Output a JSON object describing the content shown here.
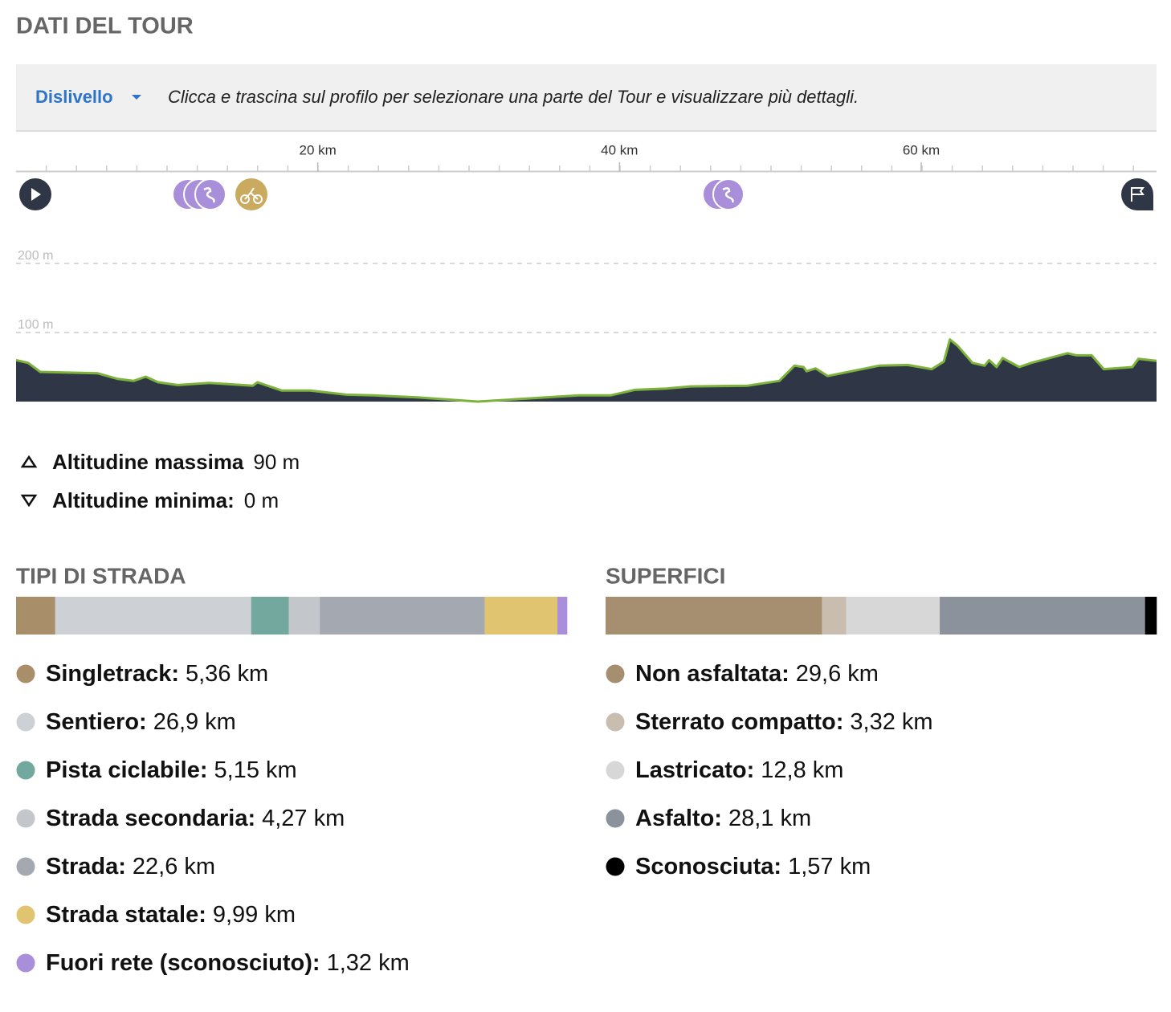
{
  "header": {
    "title": "DATI DEL TOUR"
  },
  "toolbar": {
    "dropdown": "Dislivello",
    "hint": "Clicca e trascina sul profilo per selezionare una parte del Tour e visualizzare più dettagli."
  },
  "elevation": {
    "type": "area",
    "color": "#2f3747",
    "line_color": "#7db33c",
    "x": [
      0,
      0.8,
      1.6,
      5.4,
      6.7,
      7.8,
      8.6,
      9.4,
      10.7,
      12.8,
      15.7,
      16,
      17.6,
      19.5,
      21.9,
      23.7,
      26.6,
      30.6,
      37.3,
      39.4,
      41,
      43.1,
      44.7,
      48.5,
      50.6,
      51.6,
      52.2,
      52.4,
      53,
      53.8,
      57.2,
      59.1,
      60.7,
      61.5,
      61.9,
      62.4,
      63.4,
      64.2,
      64.5,
      65,
      65.4,
      66.5,
      67.3,
      69.7,
      70.3,
      71.3,
      72.1,
      74,
      74.4,
      75.6
    ],
    "values": [
      60,
      56,
      43,
      41,
      33,
      30,
      36,
      28,
      24,
      27,
      23,
      28,
      16,
      16,
      10,
      9,
      6,
      0,
      9,
      9,
      17,
      19,
      22,
      23,
      30,
      52,
      50,
      44,
      48,
      37,
      52,
      53,
      47,
      58,
      90,
      81,
      56,
      52,
      60,
      50,
      63,
      50,
      56,
      70,
      67,
      67,
      47,
      50,
      62,
      59
    ],
    "xlim": [
      0,
      75.6
    ],
    "xticks": [
      {
        "value": 20,
        "label": "20 km"
      },
      {
        "value": 40,
        "label": "40 km"
      },
      {
        "value": 60,
        "label": "60 km"
      }
    ],
    "ylim": [
      0,
      250
    ],
    "yticks": [
      {
        "value": 100,
        "label": "100 m"
      },
      {
        "value": 200,
        "label": "200 m"
      }
    ],
    "grid": true
  },
  "stats": [
    {
      "label": "Altitudine massima",
      "value": "90 m"
    },
    {
      "label": "Altitudine minima:",
      "value": "0 m"
    }
  ],
  "road_types": {
    "type": "stacked_bar",
    "title": "TIPI DI STRADA",
    "series": [
      {
        "name": "Singletrack:",
        "color": "#a88f6a",
        "values": [
          5.36
        ],
        "value_labels": [
          "5,36 km"
        ]
      },
      {
        "name": "Sentiero:",
        "color": "#cdd1d6",
        "values": [
          26.9
        ],
        "value_labels": [
          "26,9 km"
        ]
      },
      {
        "name": "Pista ciclabile:",
        "color": "#73a89e",
        "values": [
          5.15
        ],
        "value_labels": [
          "5,15 km"
        ]
      },
      {
        "name": "Strada secondaria:",
        "color": "#c3c6ca",
        "values": [
          4.27
        ],
        "value_labels": [
          "4,27 km"
        ]
      },
      {
        "name": "Strada:",
        "color": "#a4a9b1",
        "values": [
          22.6
        ],
        "value_labels": [
          "22,6 km"
        ]
      },
      {
        "name": "Strada statale:",
        "color": "#e0c46f",
        "values": [
          9.99
        ],
        "value_labels": [
          "9,99 km"
        ]
      },
      {
        "name": "Fuori rete (sconosciuto):",
        "color": "#a98fd9",
        "values": [
          1.32
        ],
        "value_labels": [
          "1,32 km"
        ]
      }
    ]
  },
  "surfaces": {
    "type": "stacked_bar",
    "title": "SUPERFICI",
    "series": [
      {
        "name": "Non asfaltata:",
        "color": "#a58f70",
        "values": [
          29.6
        ],
        "value_labels": [
          "29,6 km"
        ]
      },
      {
        "name": "Sterrato compatto:",
        "color": "#c8bdaf",
        "values": [
          3.32
        ],
        "value_labels": [
          "3,32 km"
        ]
      },
      {
        "name": "Lastricato:",
        "color": "#d7d7d7",
        "values": [
          12.8
        ],
        "value_labels": [
          "12,8 km"
        ]
      },
      {
        "name": "Asfalto:",
        "color": "#8c929b",
        "values": [
          28.1
        ],
        "value_labels": [
          "28,1 km"
        ]
      },
      {
        "name": "Sconosciuta:",
        "color": "#000000",
        "values": [
          1.57
        ],
        "value_labels": [
          "1,57 km"
        ]
      }
    ]
  }
}
